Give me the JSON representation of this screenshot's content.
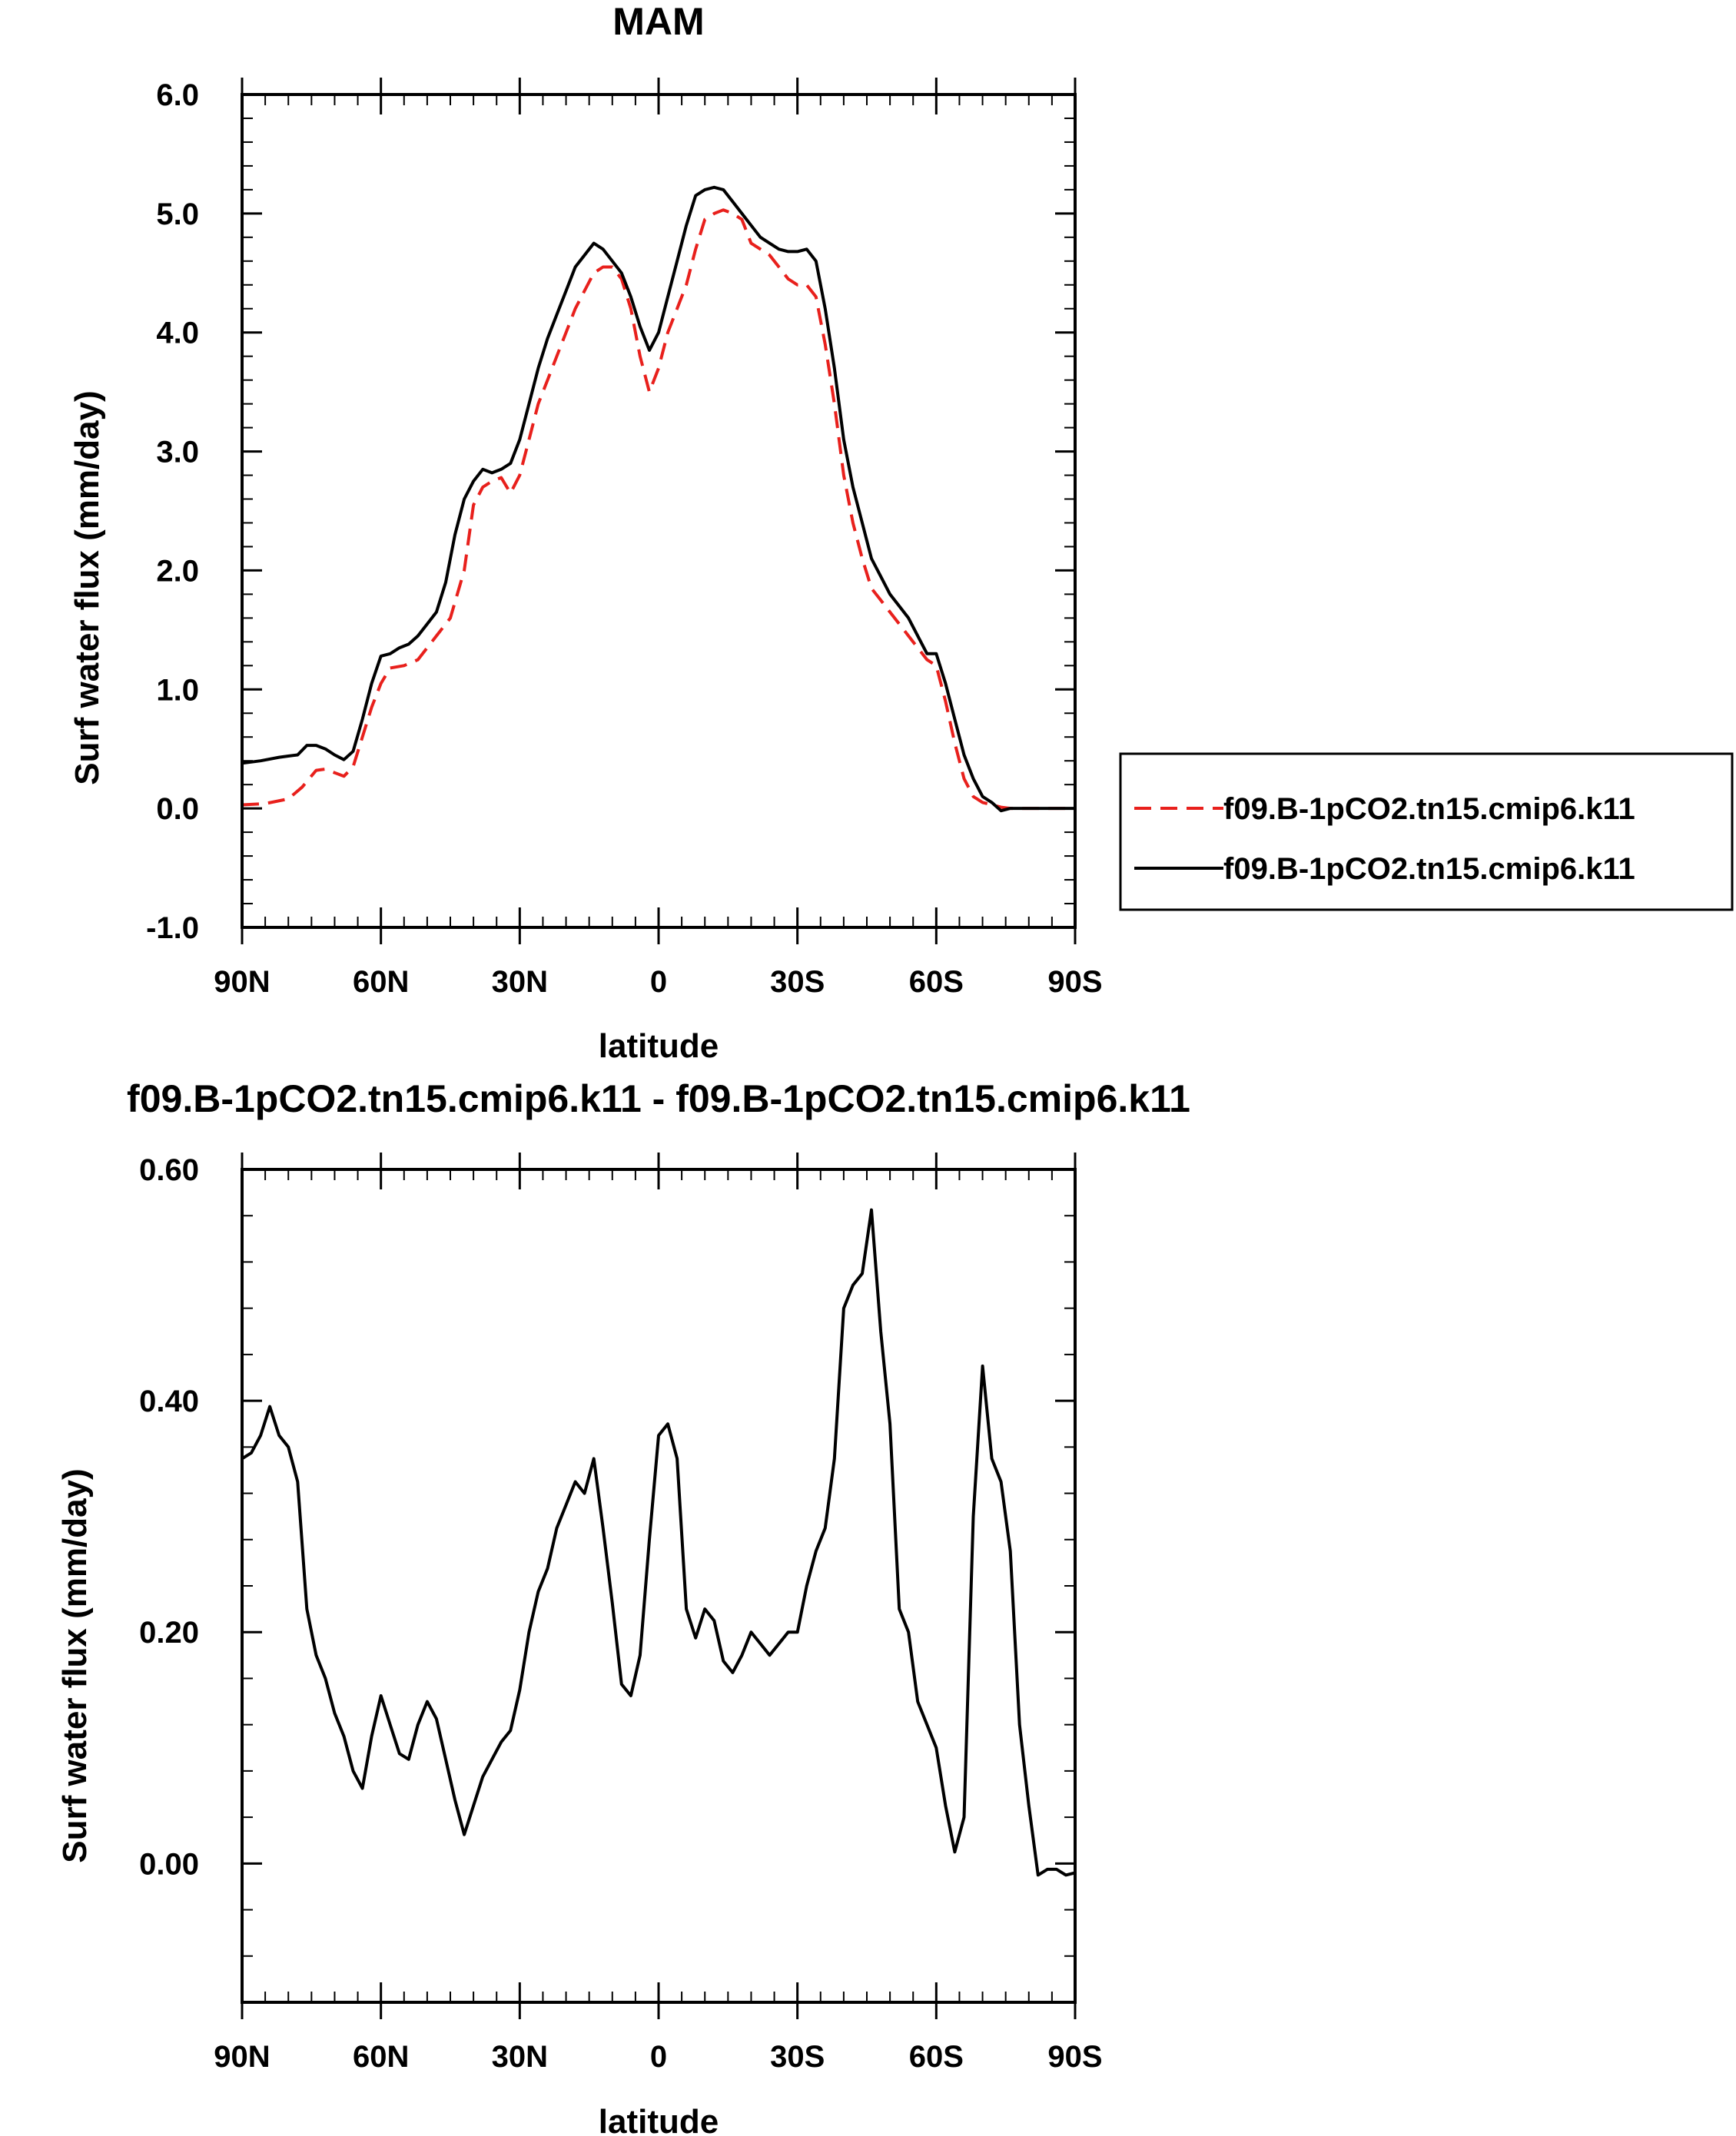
{
  "chart_data": [
    {
      "type": "line",
      "title": "MAM",
      "xlabel": "latitude",
      "ylabel": "Surf water flux (mm/day)",
      "xlim": [
        90,
        -90
      ],
      "ylim": [
        -1.0,
        6.0
      ],
      "x_ticks": [
        90,
        60,
        30,
        0,
        -30,
        -60,
        -90
      ],
      "x_tick_labels": [
        "90N",
        "60N",
        "30N",
        "0",
        "30S",
        "60S",
        "90S"
      ],
      "y_ticks": [
        -1.0,
        0.0,
        1.0,
        2.0,
        3.0,
        4.0,
        5.0,
        6.0
      ],
      "y_tick_labels": [
        "-1.0",
        "0.0",
        "1.0",
        "2.0",
        "3.0",
        "4.0",
        "5.0",
        "6.0"
      ],
      "grid": false,
      "legend_position": "right",
      "series": [
        {
          "name": "f09.B-1pCO2.tn15.cmip6.k11",
          "color": "#e8201c",
          "style": "dashed",
          "x": [
            90,
            85,
            80,
            77,
            74,
            72,
            70,
            68,
            66,
            64,
            62,
            60,
            58,
            55,
            52,
            50,
            48,
            45,
            42,
            40,
            38,
            36,
            34,
            32,
            30,
            28,
            26,
            24,
            22,
            20,
            18,
            16,
            14,
            12,
            10,
            8,
            6,
            4,
            2,
            0,
            -2,
            -4,
            -6,
            -8,
            -10,
            -12,
            -14,
            -16,
            -18,
            -20,
            -22,
            -24,
            -26,
            -28,
            -30,
            -32,
            -34,
            -36,
            -38,
            -40,
            -42,
            -44,
            -46,
            -48,
            -50,
            -52,
            -54,
            -56,
            -58,
            -60,
            -62,
            -64,
            -66,
            -68,
            -70,
            -72,
            -74,
            -76,
            -78,
            -80,
            -84,
            -88,
            -90
          ],
          "y": [
            0.03,
            0.04,
            0.08,
            0.18,
            0.32,
            0.33,
            0.3,
            0.27,
            0.35,
            0.6,
            0.85,
            1.05,
            1.18,
            1.2,
            1.25,
            1.35,
            1.45,
            1.6,
            2.0,
            2.55,
            2.7,
            2.75,
            2.78,
            2.65,
            2.8,
            3.1,
            3.4,
            3.6,
            3.8,
            4.0,
            4.2,
            4.35,
            4.5,
            4.55,
            4.55,
            4.45,
            4.2,
            3.8,
            3.5,
            3.7,
            4.0,
            4.2,
            4.4,
            4.7,
            4.95,
            5.0,
            5.03,
            5.0,
            4.95,
            4.75,
            4.7,
            4.65,
            4.55,
            4.45,
            4.4,
            4.4,
            4.3,
            3.9,
            3.4,
            2.8,
            2.4,
            2.1,
            1.85,
            1.75,
            1.65,
            1.55,
            1.45,
            1.35,
            1.25,
            1.2,
            0.9,
            0.55,
            0.25,
            0.1,
            0.05,
            0.03,
            0.01,
            0.0,
            0.0,
            0.0,
            0.0,
            0.0,
            0.0
          ]
        },
        {
          "name": "f09.B-1pCO2.tn15.cmip6.k11",
          "color": "#000000",
          "style": "solid",
          "x": [
            90,
            86,
            82,
            80,
            78,
            76,
            74,
            72,
            70,
            68,
            66,
            64,
            62,
            60,
            58,
            56,
            54,
            52,
            50,
            48,
            46,
            44,
            42,
            40,
            38,
            36,
            34,
            32,
            30,
            28,
            26,
            24,
            22,
            20,
            18,
            16,
            14,
            12,
            10,
            8,
            6,
            4,
            2,
            0,
            -2,
            -4,
            -6,
            -8,
            -10,
            -12,
            -14,
            -16,
            -18,
            -20,
            -22,
            -24,
            -26,
            -28,
            -30,
            -32,
            -34,
            -36,
            -38,
            -40,
            -42,
            -44,
            -46,
            -48,
            -50,
            -52,
            -54,
            -56,
            -58,
            -60,
            -62,
            -64,
            -66,
            -68,
            -70,
            -72,
            -74,
            -76,
            -78,
            -80,
            -84,
            -88,
            -90
          ],
          "y": [
            0.38,
            0.4,
            0.43,
            0.44,
            0.45,
            0.53,
            0.53,
            0.5,
            0.45,
            0.41,
            0.48,
            0.75,
            1.05,
            1.28,
            1.3,
            1.35,
            1.38,
            1.45,
            1.55,
            1.65,
            1.9,
            2.3,
            2.6,
            2.75,
            2.85,
            2.82,
            2.85,
            2.9,
            3.1,
            3.4,
            3.7,
            3.95,
            4.15,
            4.35,
            4.55,
            4.65,
            4.75,
            4.7,
            4.6,
            4.5,
            4.3,
            4.05,
            3.85,
            4.0,
            4.3,
            4.6,
            4.9,
            5.15,
            5.2,
            5.22,
            5.2,
            5.1,
            5.0,
            4.9,
            4.8,
            4.75,
            4.7,
            4.68,
            4.68,
            4.7,
            4.6,
            4.2,
            3.7,
            3.1,
            2.7,
            2.4,
            2.1,
            1.95,
            1.8,
            1.7,
            1.6,
            1.45,
            1.3,
            1.3,
            1.05,
            0.75,
            0.45,
            0.25,
            0.1,
            0.05,
            -0.02,
            0.0,
            0.0,
            0.0,
            0.0,
            0.0,
            0.0
          ]
        }
      ]
    },
    {
      "type": "line",
      "title": "f09.B-1pCO2.tn15.cmip6.k11 - f09.B-1pCO2.tn15.cmip6.k11",
      "xlabel": "latitude",
      "ylabel": "Surf water flux (mm/day)",
      "xlim": [
        90,
        -90
      ],
      "ylim": [
        -0.12,
        0.6
      ],
      "x_ticks": [
        90,
        60,
        30,
        0,
        -30,
        -60,
        -90
      ],
      "x_tick_labels": [
        "90N",
        "60N",
        "30N",
        "0",
        "30S",
        "60S",
        "90S"
      ],
      "y_ticks": [
        0.0,
        0.2,
        0.4,
        0.6
      ],
      "y_tick_labels": [
        "0.00",
        "0.20",
        "0.40",
        "0.60"
      ],
      "grid": false,
      "series": [
        {
          "color": "#000000",
          "style": "solid",
          "x": [
            90,
            88,
            86,
            84,
            82,
            80,
            78,
            76,
            74,
            72,
            70,
            68,
            66,
            64,
            62,
            60,
            58,
            56,
            54,
            52,
            50,
            48,
            46,
            44,
            42,
            40,
            38,
            36,
            34,
            32,
            30,
            28,
            26,
            24,
            22,
            20,
            18,
            16,
            14,
            12,
            10,
            8,
            6,
            4,
            2,
            0,
            -2,
            -4,
            -6,
            -8,
            -10,
            -12,
            -14,
            -16,
            -18,
            -20,
            -22,
            -24,
            -26,
            -28,
            -30,
            -32,
            -34,
            -36,
            -38,
            -40,
            -42,
            -44,
            -46,
            -48,
            -50,
            -52,
            -54,
            -56,
            -58,
            -60,
            -62,
            -64,
            -66,
            -68,
            -70,
            -72,
            -74,
            -76,
            -78,
            -80,
            -82,
            -84,
            -86,
            -88,
            -90
          ],
          "y": [
            0.35,
            0.355,
            0.37,
            0.395,
            0.37,
            0.36,
            0.33,
            0.22,
            0.18,
            0.16,
            0.13,
            0.11,
            0.08,
            0.065,
            0.11,
            0.145,
            0.12,
            0.095,
            0.09,
            0.12,
            0.14,
            0.125,
            0.09,
            0.055,
            0.025,
            0.05,
            0.075,
            0.09,
            0.105,
            0.115,
            0.15,
            0.2,
            0.235,
            0.255,
            0.29,
            0.31,
            0.33,
            0.32,
            0.35,
            0.29,
            0.225,
            0.155,
            0.145,
            0.18,
            0.28,
            0.37,
            0.38,
            0.35,
            0.22,
            0.195,
            0.22,
            0.21,
            0.175,
            0.165,
            0.18,
            0.2,
            0.19,
            0.18,
            0.19,
            0.2,
            0.2,
            0.24,
            0.27,
            0.29,
            0.35,
            0.48,
            0.5,
            0.51,
            0.565,
            0.46,
            0.38,
            0.22,
            0.2,
            0.14,
            0.12,
            0.1,
            0.05,
            0.01,
            0.04,
            0.3,
            0.43,
            0.35,
            0.33,
            0.27,
            0.12,
            0.05,
            -0.01,
            -0.005,
            -0.005,
            -0.01,
            -0.008
          ]
        }
      ]
    }
  ]
}
